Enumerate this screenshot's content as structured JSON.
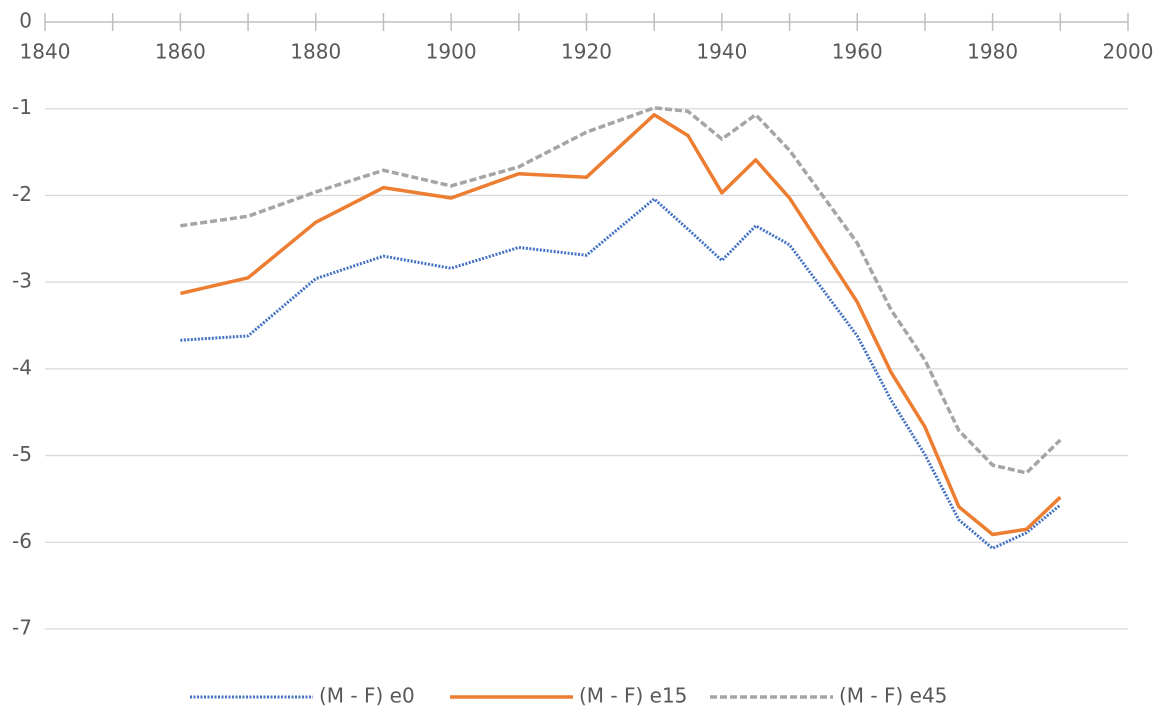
{
  "chart_data": {
    "type": "line",
    "x": [
      1860,
      1870,
      1880,
      1890,
      1900,
      1910,
      1920,
      1930,
      1935,
      1940,
      1945,
      1950,
      1960,
      1965,
      1970,
      1975,
      1980,
      1985,
      1990
    ],
    "series": [
      {
        "name": "(M - F) e0",
        "color": "#4472c4",
        "dash": "dotted",
        "values": [
          -3.67,
          -3.62,
          -2.96,
          -2.7,
          -2.84,
          -2.6,
          -2.69,
          -2.04,
          -2.39,
          -2.75,
          -2.35,
          -2.57,
          -3.62,
          -4.36,
          -4.99,
          -5.74,
          -6.07,
          -5.89,
          -5.57
        ]
      },
      {
        "name": "(M - F) e15",
        "color": "#ed7d31",
        "dash": "solid",
        "values": [
          -3.13,
          -2.95,
          -2.31,
          -1.91,
          -2.03,
          -1.75,
          -1.79,
          -1.07,
          -1.31,
          -1.97,
          -1.59,
          -2.03,
          -3.23,
          -4.04,
          -4.67,
          -5.59,
          -5.91,
          -5.85,
          -5.48
        ]
      },
      {
        "name": "(M - F) e45",
        "color": "#a5a5a5",
        "dash": "dashed",
        "values": [
          -2.35,
          -2.24,
          -1.96,
          -1.71,
          -1.89,
          -1.67,
          -1.27,
          -0.99,
          -1.03,
          -1.35,
          -1.07,
          -1.48,
          -2.55,
          -3.32,
          -3.9,
          -4.71,
          -5.11,
          -5.2,
          -4.82
        ]
      }
    ],
    "xlim": [
      1840,
      2000
    ],
    "xticks": [
      1840,
      1860,
      1880,
      1900,
      1920,
      1940,
      1960,
      1980,
      2000
    ],
    "ylim": [
      -7,
      0
    ],
    "yticks": [
      0,
      -1,
      -2,
      -3,
      -4,
      -5,
      -6,
      -7
    ],
    "grid": true,
    "legend": "bottom"
  }
}
